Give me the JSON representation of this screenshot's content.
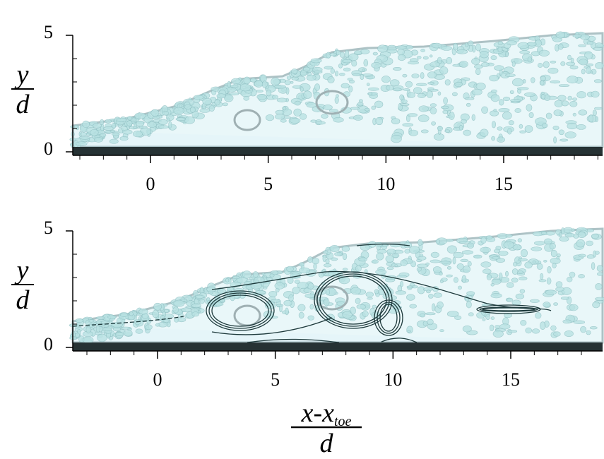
{
  "chart_data": [
    {
      "type": "field",
      "xlim": [
        -3.3,
        19.2
      ],
      "xticks": [
        0,
        5,
        10,
        15
      ],
      "xminor_ticks": [
        -3,
        -2,
        -1,
        1,
        2,
        3,
        4,
        6,
        7,
        8,
        9,
        11,
        12,
        13,
        14,
        16,
        17,
        18,
        19
      ],
      "ylim": [
        0,
        5
      ],
      "yticks": [
        0,
        5
      ],
      "yminor_ticks": [
        1,
        2,
        3,
        4
      ],
      "ylabel": {
        "numerator": "y",
        "denominator": "d"
      },
      "contours": false
    },
    {
      "type": "field",
      "xlim": [
        -3.6,
        18.9
      ],
      "xticks": [
        0,
        5,
        10,
        15
      ],
      "xminor_ticks": [
        -3,
        -2,
        -1,
        1,
        2,
        3,
        4,
        6,
        7,
        8,
        9,
        11,
        12,
        13,
        14,
        16,
        17,
        18
      ],
      "ylim": [
        0,
        5
      ],
      "yticks": [
        0,
        5
      ],
      "yminor_ticks": [
        1,
        2,
        3,
        4
      ],
      "ylabel": {
        "numerator": "y",
        "denominator": "d"
      },
      "xlabel": {
        "numerator": "x-x",
        "subscript": "toe",
        "denominator": "d"
      },
      "contours": true
    }
  ]
}
